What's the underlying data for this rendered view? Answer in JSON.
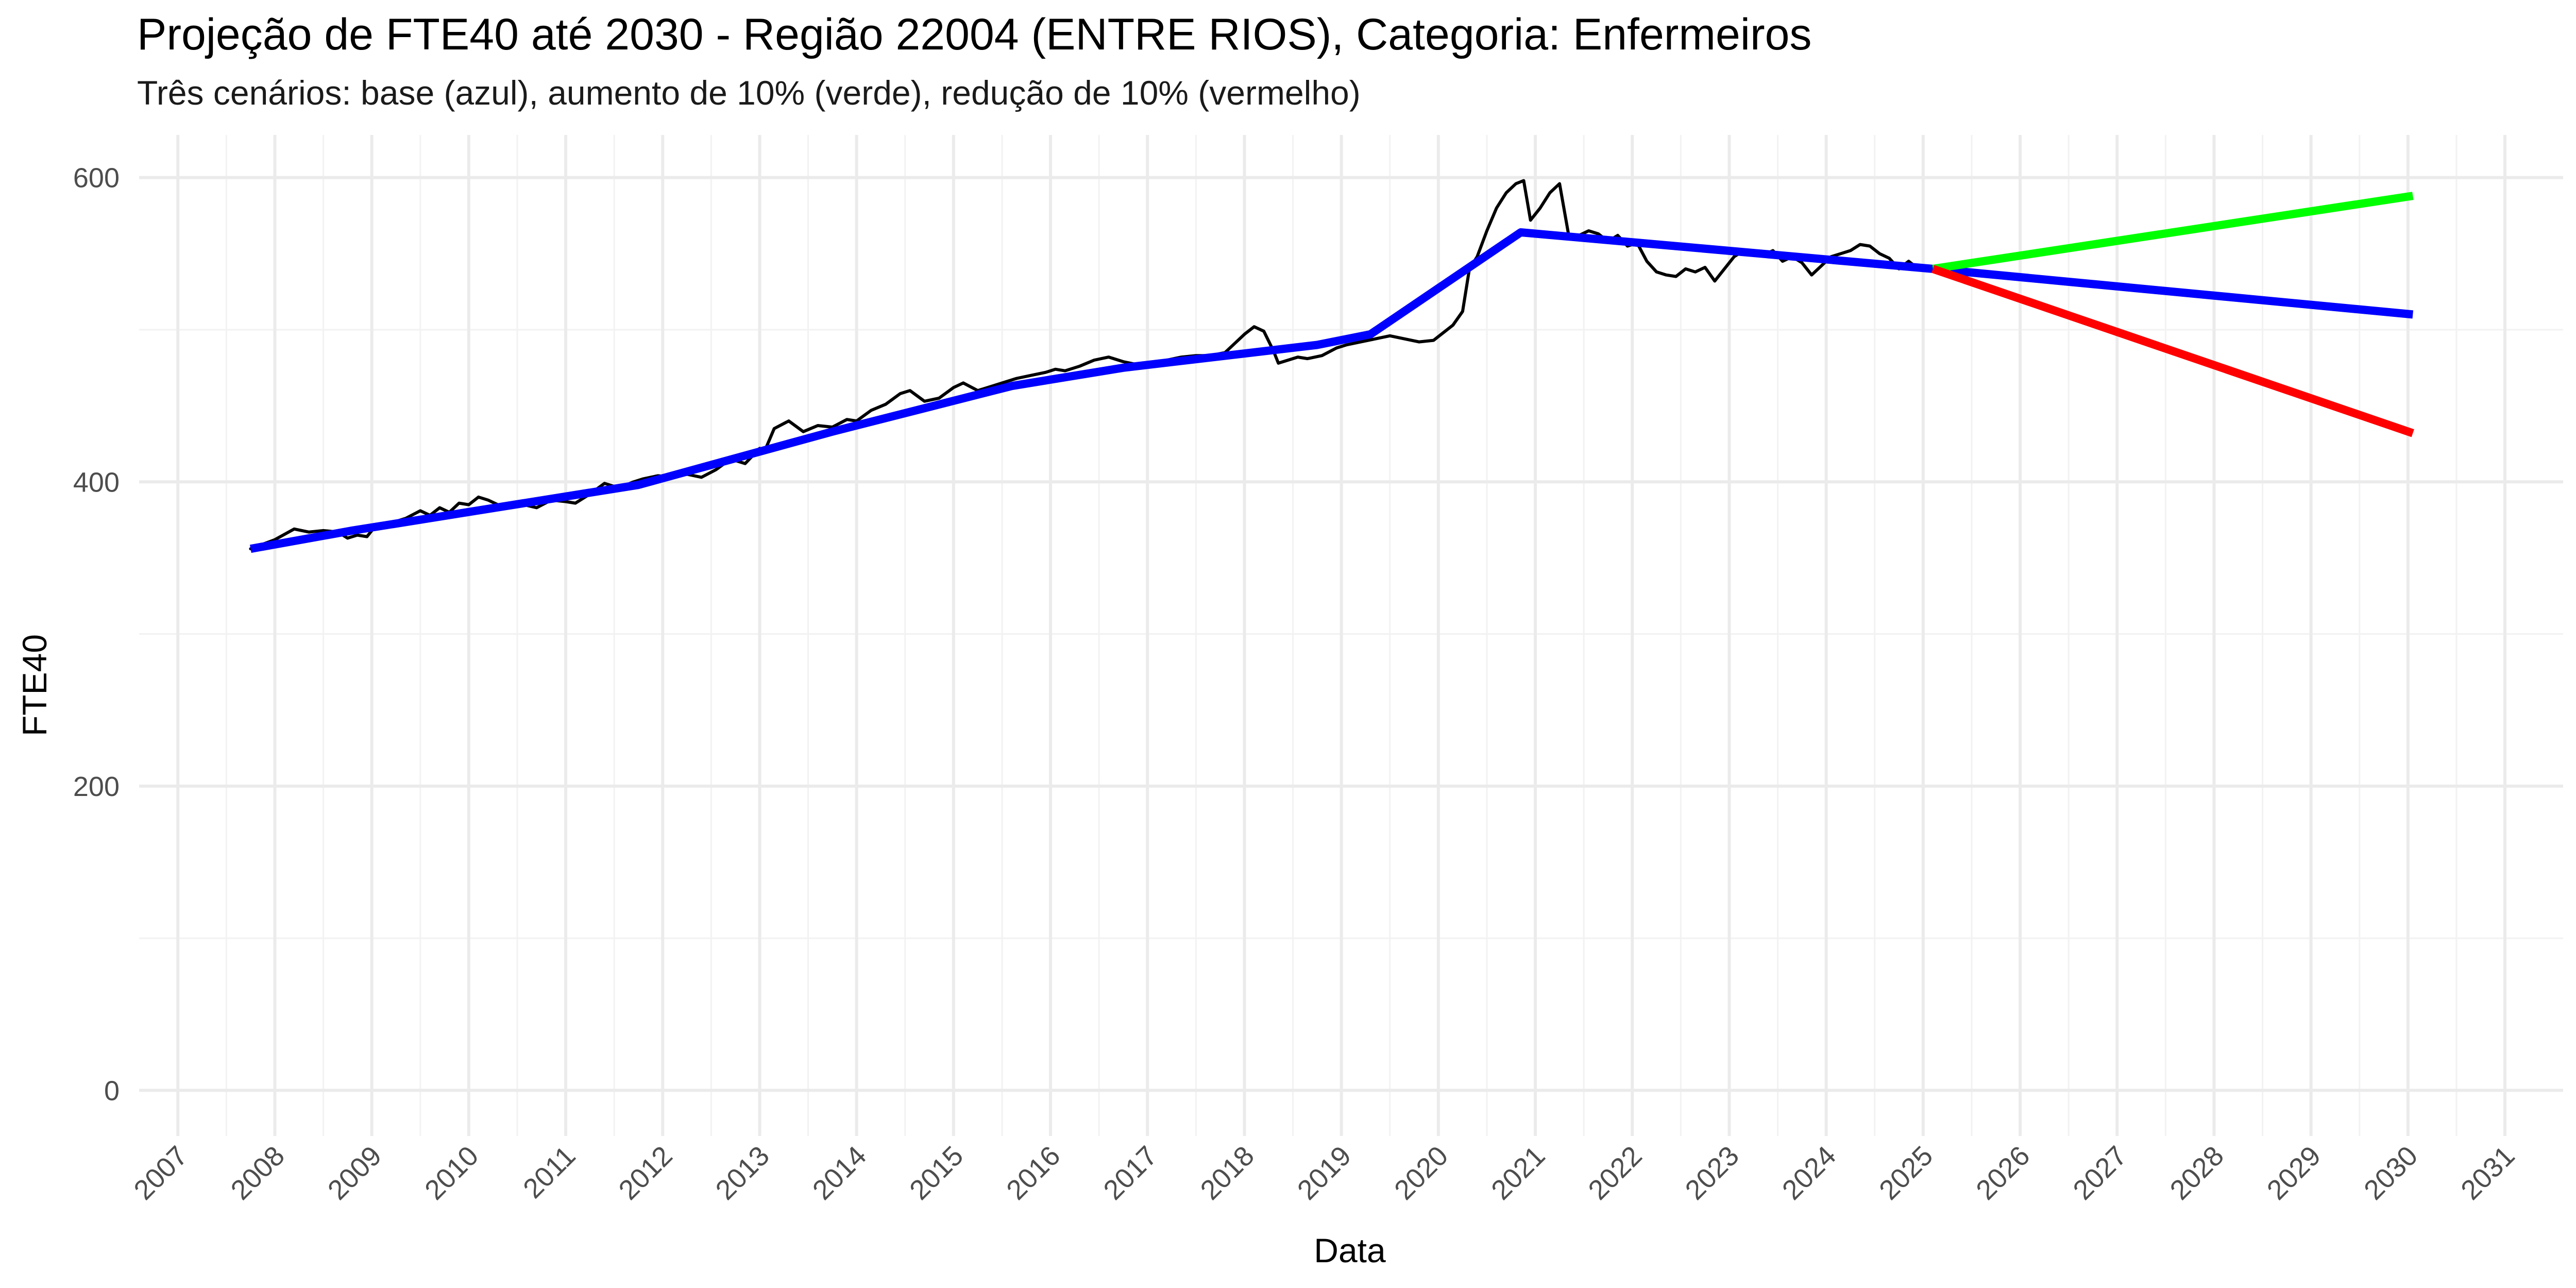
{
  "chart_data": {
    "type": "line",
    "title": "Projeção de FTE40 até 2030 - Região 22004 (ENTRE RIOS), Categoria: Enfermeiros",
    "subtitle": "Três cenários: base (azul), aumento de 10% (verde), redução de 10% (vermelho)",
    "xlabel": "Data",
    "ylabel": "FTE40",
    "xlim": [
      2006.6,
      2031.6
    ],
    "ylim": [
      -30,
      628
    ],
    "y_ticks": [
      0,
      200,
      400,
      600
    ],
    "x_ticks": [
      2007,
      2008,
      2009,
      2010,
      2011,
      2012,
      2013,
      2014,
      2015,
      2016,
      2017,
      2018,
      2019,
      2020,
      2021,
      2022,
      2023,
      2024,
      2025,
      2026,
      2027,
      2028,
      2029,
      2030,
      2031
    ],
    "grid": true,
    "colors": {
      "observed": "#000000",
      "base": "#0000FF",
      "increase": "#00FF00",
      "decrease": "#FF0000"
    },
    "series": [
      {
        "key": "observed",
        "x": [
          2007.75,
          2008.0,
          2008.2,
          2008.35,
          2008.5,
          2008.65,
          2008.75,
          2008.85,
          2008.95,
          2009.05,
          2009.1,
          2009.2,
          2009.35,
          2009.5,
          2009.6,
          2009.7,
          2009.8,
          2009.9,
          2010.0,
          2010.1,
          2010.2,
          2010.3,
          2010.5,
          2010.7,
          2010.85,
          2011.0,
          2011.1,
          2011.25,
          2011.4,
          2011.55,
          2011.7,
          2011.8,
          2011.95,
          2012.1,
          2012.25,
          2012.4,
          2012.55,
          2012.7,
          2012.85,
          2013.0,
          2013.05,
          2013.15,
          2013.3,
          2013.45,
          2013.6,
          2013.75,
          2013.9,
          2014.0,
          2014.15,
          2014.3,
          2014.45,
          2014.55,
          2014.7,
          2014.85,
          2015.0,
          2015.1,
          2015.25,
          2015.35,
          2015.5,
          2015.65,
          2015.8,
          2015.95,
          2016.05,
          2016.15,
          2016.3,
          2016.45,
          2016.6,
          2016.75,
          2016.9,
          2017.05,
          2017.2,
          2017.35,
          2017.5,
          2017.65,
          2017.8,
          2017.9,
          2018.0,
          2018.1,
          2018.2,
          2018.3,
          2018.35,
          2018.45,
          2018.55,
          2018.65,
          2018.8,
          2018.95,
          2019.05,
          2019.2,
          2019.35,
          2019.5,
          2019.65,
          2019.8,
          2019.95,
          2020.05,
          2020.15,
          2020.25,
          2020.32,
          2020.4,
          2020.5,
          2020.6,
          2020.7,
          2020.8,
          2020.88,
          2020.95,
          2021.05,
          2021.15,
          2021.25,
          2021.35,
          2021.45,
          2021.55,
          2021.65,
          2021.75,
          2021.85,
          2021.95,
          2022.05,
          2022.15,
          2022.25,
          2022.35,
          2022.45,
          2022.55,
          2022.65,
          2022.75,
          2022.85,
          2022.95,
          2023.05,
          2023.15,
          2023.25,
          2023.35,
          2023.45,
          2023.55,
          2023.65,
          2023.75,
          2023.85,
          2023.95,
          2024.05,
          2024.15,
          2024.25,
          2024.35,
          2024.45,
          2024.55,
          2024.65,
          2024.75,
          2024.85,
          2024.95,
          2025.05
        ],
        "values": [
          356,
          362,
          369,
          367,
          368,
          367,
          363,
          365,
          364,
          372,
          371,
          373,
          376,
          381,
          378,
          383,
          380,
          386,
          385,
          390,
          388,
          385,
          386,
          383,
          388,
          387,
          386,
          392,
          399,
          396,
          400,
          402,
          404,
          403,
          405,
          403,
          408,
          415,
          412,
          422,
          420,
          435,
          440,
          433,
          437,
          436,
          441,
          440,
          447,
          451,
          458,
          460,
          453,
          455,
          462,
          465,
          460,
          462,
          465,
          468,
          470,
          472,
          474,
          473,
          476,
          480,
          482,
          479,
          477,
          478,
          480,
          482,
          483,
          483,
          485,
          491,
          497,
          502,
          499,
          486,
          478,
          480,
          482,
          481,
          483,
          488,
          490,
          492,
          494,
          496,
          494,
          492,
          493,
          498,
          503,
          512,
          540,
          548,
          565,
          580,
          590,
          596,
          598,
          572,
          580,
          590,
          596,
          560,
          562,
          565,
          563,
          558,
          562,
          555,
          557,
          545,
          538,
          536,
          535,
          540,
          538,
          541,
          532,
          540,
          548,
          552,
          550,
          549,
          552,
          545,
          548,
          544,
          536,
          542,
          548,
          550,
          552,
          556,
          555,
          550,
          547,
          540,
          545,
          540,
          541
        ],
        "style": "thin"
      },
      {
        "key": "base",
        "x": [
          2007.75,
          2008.8,
          2011.75,
          2013.75,
          2015.6,
          2016.75,
          2018.75,
          2019.3,
          2020.85,
          2025.1,
          2030.05
        ],
        "values": [
          356,
          368,
          398,
          433,
          463,
          475,
          490,
          497,
          564,
          540,
          510
        ]
      },
      {
        "key": "increase",
        "x": [
          2025.1,
          2030.05
        ],
        "values": [
          540,
          588
        ]
      },
      {
        "key": "decrease",
        "x": [
          2025.1,
          2030.05
        ],
        "values": [
          540,
          432
        ]
      }
    ]
  }
}
